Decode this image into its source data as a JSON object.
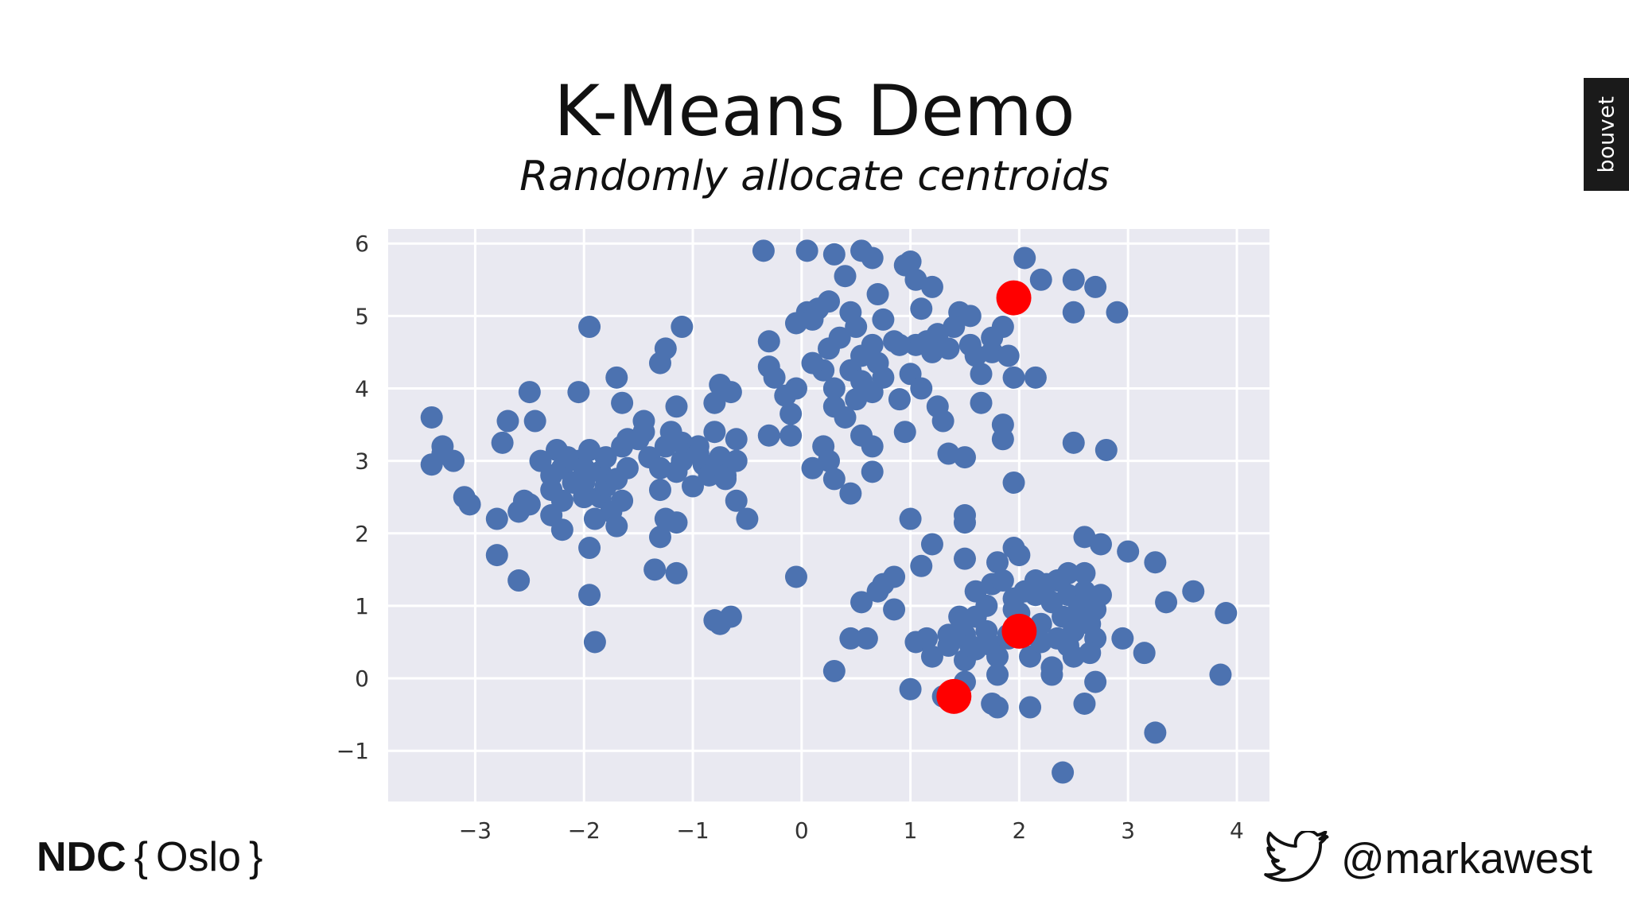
{
  "slide": {
    "title": "K-Means Demo",
    "subtitle": "Randomly allocate centroids"
  },
  "brand_tab": {
    "label": "bouvet",
    "background": "#1a1a1a"
  },
  "footer": {
    "conference": {
      "main": "NDC",
      "open_brace": "{",
      "city": "Oslo",
      "close_brace": "}"
    },
    "twitter": {
      "icon": "twitter-bird-icon",
      "handle": "@markawest"
    }
  },
  "chart_data": {
    "type": "scatter",
    "title": "",
    "xlabel": "",
    "ylabel": "",
    "xlim": [
      -3.8,
      4.3
    ],
    "ylim": [
      -1.7,
      6.2
    ],
    "xticks": [
      -3,
      -2,
      -1,
      0,
      1,
      2,
      3,
      4
    ],
    "xtick_labels": [
      "−3",
      "−2",
      "−1",
      "0",
      "1",
      "2",
      "3",
      "4"
    ],
    "yticks": [
      -1,
      0,
      1,
      2,
      3,
      4,
      5,
      6
    ],
    "ytick_labels": [
      "−1",
      "0",
      "1",
      "2",
      "3",
      "4",
      "5",
      "6"
    ],
    "grid": true,
    "background": "#e9e9f1",
    "series": [
      {
        "role": "points",
        "color": "#4c72b0",
        "points": [
          [
            -3.4,
            3.6
          ],
          [
            -3.3,
            3.2
          ],
          [
            -3.2,
            3.0
          ],
          [
            -3.4,
            2.95
          ],
          [
            -3.3,
            3.1
          ],
          [
            -3.1,
            2.5
          ],
          [
            -3.05,
            2.4
          ],
          [
            -2.8,
            2.2
          ],
          [
            -2.8,
            1.7
          ],
          [
            -2.6,
            1.35
          ],
          [
            -2.75,
            3.25
          ],
          [
            -2.7,
            3.55
          ],
          [
            -2.5,
            3.95
          ],
          [
            -2.45,
            3.55
          ],
          [
            -2.55,
            2.45
          ],
          [
            -2.6,
            2.3
          ],
          [
            -2.5,
            2.4
          ],
          [
            -2.3,
            2.25
          ],
          [
            -2.2,
            2.05
          ],
          [
            -2.3,
            2.6
          ],
          [
            -2.3,
            2.8
          ],
          [
            -2.25,
            3.15
          ],
          [
            -2.2,
            2.9
          ],
          [
            -2.15,
            3.05
          ],
          [
            -2.1,
            2.7
          ],
          [
            -2.05,
            3.0
          ],
          [
            -2.0,
            2.5
          ],
          [
            -1.95,
            3.15
          ],
          [
            -2.0,
            2.7
          ],
          [
            -1.9,
            2.2
          ],
          [
            -1.85,
            2.5
          ],
          [
            -1.8,
            2.65
          ],
          [
            -1.85,
            2.85
          ],
          [
            -1.8,
            3.05
          ],
          [
            -1.75,
            2.3
          ],
          [
            -1.7,
            2.1
          ],
          [
            -1.65,
            2.45
          ],
          [
            -1.7,
            2.75
          ],
          [
            -1.6,
            2.9
          ],
          [
            -1.65,
            3.2
          ],
          [
            -2.05,
            3.95
          ],
          [
            -1.95,
            4.85
          ],
          [
            -1.7,
            4.15
          ],
          [
            -1.65,
            3.8
          ],
          [
            -1.5,
            3.3
          ],
          [
            -1.45,
            3.55
          ],
          [
            -1.4,
            3.05
          ],
          [
            -1.3,
            2.9
          ],
          [
            -1.25,
            3.2
          ],
          [
            -1.3,
            2.6
          ],
          [
            -1.25,
            2.2
          ],
          [
            -1.3,
            1.95
          ],
          [
            -1.35,
            1.5
          ],
          [
            -1.15,
            1.45
          ],
          [
            -1.15,
            2.15
          ],
          [
            -1.1,
            3.0
          ],
          [
            -1.2,
            3.4
          ],
          [
            -1.1,
            3.25
          ],
          [
            -1.15,
            3.75
          ],
          [
            -1.1,
            4.85
          ],
          [
            -1.3,
            4.35
          ],
          [
            -1.25,
            4.55
          ],
          [
            -1.0,
            2.65
          ],
          [
            -0.95,
            3.2
          ],
          [
            -0.9,
            2.95
          ],
          [
            -0.85,
            2.8
          ],
          [
            -0.8,
            3.4
          ],
          [
            -0.75,
            3.05
          ],
          [
            -0.8,
            3.8
          ],
          [
            -0.75,
            4.05
          ],
          [
            -0.65,
            3.95
          ],
          [
            -0.7,
            2.8
          ],
          [
            -0.6,
            3.0
          ],
          [
            -0.6,
            3.3
          ],
          [
            -0.6,
            2.45
          ],
          [
            -0.5,
            2.2
          ],
          [
            -0.8,
            0.8
          ],
          [
            -0.75,
            0.75
          ],
          [
            -0.65,
            0.85
          ],
          [
            -1.95,
            1.15
          ],
          [
            -1.9,
            0.5
          ],
          [
            -1.95,
            1.8
          ],
          [
            -1.6,
            3.3
          ],
          [
            -1.45,
            3.4
          ],
          [
            -1.15,
            2.85
          ],
          [
            -0.95,
            3.1
          ],
          [
            -0.7,
            2.75
          ],
          [
            -2.0,
            2.9
          ],
          [
            -2.2,
            2.45
          ],
          [
            -2.4,
            3.0
          ],
          [
            -0.35,
            5.9
          ],
          [
            -0.3,
            4.65
          ],
          [
            -0.3,
            4.3
          ],
          [
            -0.25,
            4.15
          ],
          [
            -0.3,
            3.35
          ],
          [
            -0.1,
            3.35
          ],
          [
            -0.1,
            3.65
          ],
          [
            -0.15,
            3.9
          ],
          [
            -0.05,
            4.0
          ],
          [
            -0.05,
            4.9
          ],
          [
            0.05,
            5.05
          ],
          [
            0.15,
            5.1
          ],
          [
            0.25,
            5.2
          ],
          [
            0.1,
            4.95
          ],
          [
            0.05,
            5.9
          ],
          [
            0.3,
            5.85
          ],
          [
            0.4,
            5.55
          ],
          [
            0.55,
            5.9
          ],
          [
            0.65,
            5.8
          ],
          [
            0.7,
            5.3
          ],
          [
            0.75,
            4.95
          ],
          [
            0.5,
            4.85
          ],
          [
            0.35,
            4.7
          ],
          [
            0.25,
            4.55
          ],
          [
            0.2,
            4.25
          ],
          [
            0.1,
            4.35
          ],
          [
            0.3,
            4.0
          ],
          [
            0.45,
            4.25
          ],
          [
            0.55,
            4.1
          ],
          [
            0.65,
            3.95
          ],
          [
            0.5,
            3.85
          ],
          [
            0.7,
            4.35
          ],
          [
            0.65,
            4.6
          ],
          [
            0.75,
            4.15
          ],
          [
            0.3,
            3.75
          ],
          [
            0.4,
            3.6
          ],
          [
            0.55,
            3.35
          ],
          [
            0.65,
            3.2
          ],
          [
            0.95,
            3.4
          ],
          [
            0.9,
            3.85
          ],
          [
            0.95,
            5.7
          ],
          [
            1.0,
            5.75
          ],
          [
            1.05,
            5.5
          ],
          [
            1.2,
            5.4
          ],
          [
            1.1,
            5.1
          ],
          [
            1.25,
            4.75
          ],
          [
            1.05,
            4.6
          ],
          [
            1.15,
            4.65
          ],
          [
            0.9,
            4.6
          ],
          [
            1.0,
            4.2
          ],
          [
            1.1,
            4.0
          ],
          [
            1.25,
            3.75
          ],
          [
            1.3,
            3.55
          ],
          [
            1.35,
            4.55
          ],
          [
            1.45,
            5.05
          ],
          [
            1.55,
            5.0
          ],
          [
            1.55,
            4.6
          ],
          [
            1.6,
            4.45
          ],
          [
            1.65,
            4.2
          ],
          [
            1.75,
            4.5
          ],
          [
            1.85,
            4.85
          ],
          [
            1.9,
            4.45
          ],
          [
            1.95,
            4.15
          ],
          [
            2.15,
            4.15
          ],
          [
            1.65,
            3.8
          ],
          [
            1.85,
            3.5
          ],
          [
            1.85,
            3.3
          ],
          [
            1.35,
            3.1
          ],
          [
            1.5,
            3.05
          ],
          [
            1.95,
            2.7
          ],
          [
            0.1,
            2.9
          ],
          [
            0.2,
            3.2
          ],
          [
            0.25,
            3.0
          ],
          [
            0.3,
            2.75
          ],
          [
            0.45,
            2.55
          ],
          [
            0.65,
            2.85
          ],
          [
            2.05,
            5.8
          ],
          [
            2.2,
            5.5
          ],
          [
            2.5,
            5.5
          ],
          [
            2.7,
            5.4
          ],
          [
            2.5,
            5.05
          ],
          [
            2.9,
            5.05
          ],
          [
            2.5,
            3.25
          ],
          [
            2.8,
            3.15
          ],
          [
            1.2,
            4.5
          ],
          [
            1.4,
            4.85
          ],
          [
            0.85,
            4.65
          ],
          [
            1.75,
            4.7
          ],
          [
            0.45,
            5.05
          ],
          [
            0.55,
            4.45
          ],
          [
            1.0,
            2.2
          ],
          [
            1.5,
            2.15
          ],
          [
            1.5,
            2.25
          ],
          [
            1.2,
            1.85
          ],
          [
            1.1,
            1.55
          ],
          [
            1.5,
            1.65
          ],
          [
            1.8,
            1.6
          ],
          [
            1.95,
            1.8
          ],
          [
            2.0,
            1.7
          ],
          [
            2.6,
            1.95
          ],
          [
            2.75,
            1.85
          ],
          [
            3.0,
            1.75
          ],
          [
            3.25,
            1.6
          ],
          [
            3.6,
            1.2
          ],
          [
            3.35,
            1.05
          ],
          [
            3.9,
            0.9
          ],
          [
            3.85,
            0.05
          ],
          [
            3.15,
            0.35
          ],
          [
            2.95,
            0.55
          ],
          [
            3.25,
            -0.75
          ],
          [
            2.4,
            -1.3
          ],
          [
            2.7,
            -0.05
          ],
          [
            2.6,
            -0.35
          ],
          [
            2.1,
            -0.4
          ],
          [
            1.8,
            -0.4
          ],
          [
            1.75,
            -0.35
          ],
          [
            1.3,
            -0.25
          ],
          [
            1.0,
            -0.15
          ],
          [
            1.5,
            -0.05
          ],
          [
            1.8,
            0.05
          ],
          [
            2.3,
            0.05
          ],
          [
            2.3,
            0.15
          ],
          [
            2.1,
            0.3
          ],
          [
            1.8,
            0.3
          ],
          [
            1.5,
            0.25
          ],
          [
            1.2,
            0.3
          ],
          [
            1.05,
            0.5
          ],
          [
            1.15,
            0.55
          ],
          [
            1.35,
            0.6
          ],
          [
            1.5,
            0.6
          ],
          [
            0.6,
            0.55
          ],
          [
            0.3,
            0.1
          ],
          [
            0.55,
            1.05
          ],
          [
            0.7,
            1.2
          ],
          [
            0.75,
            1.3
          ],
          [
            0.85,
            1.4
          ],
          [
            0.85,
            0.95
          ],
          [
            1.6,
            0.85
          ],
          [
            1.7,
            1.0
          ],
          [
            1.6,
            1.2
          ],
          [
            1.75,
            1.3
          ],
          [
            1.85,
            1.35
          ],
          [
            1.95,
            1.1
          ],
          [
            2.05,
            1.2
          ],
          [
            2.15,
            1.35
          ],
          [
            2.25,
            1.3
          ],
          [
            2.35,
            1.35
          ],
          [
            2.45,
            1.45
          ],
          [
            2.6,
            1.45
          ],
          [
            2.45,
            1.15
          ],
          [
            2.6,
            1.2
          ],
          [
            2.75,
            1.15
          ],
          [
            2.55,
            1.0
          ],
          [
            2.7,
            0.95
          ],
          [
            2.4,
            0.85
          ],
          [
            2.55,
            0.85
          ],
          [
            2.65,
            0.75
          ],
          [
            2.5,
            0.65
          ],
          [
            2.35,
            0.55
          ],
          [
            2.7,
            0.55
          ],
          [
            2.45,
            0.45
          ],
          [
            2.2,
            0.5
          ],
          [
            2.05,
            0.65
          ],
          [
            2.2,
            0.75
          ],
          [
            2.0,
            0.9
          ],
          [
            1.9,
            0.6
          ],
          [
            1.7,
            0.65
          ],
          [
            1.75,
            0.45
          ],
          [
            1.6,
            0.4
          ],
          [
            1.45,
            0.85
          ],
          [
            -0.05,
            1.4
          ],
          [
            0.45,
            0.55
          ],
          [
            1.35,
            0.45
          ],
          [
            1.95,
            0.95
          ],
          [
            2.3,
            1.05
          ],
          [
            2.15,
            1.15
          ],
          [
            2.5,
            0.3
          ],
          [
            2.65,
            0.35
          ],
          [
            1.9,
            0.55
          ],
          [
            1.55,
            0.45
          ]
        ]
      },
      {
        "role": "centroids",
        "color": "#ff0000",
        "points": [
          [
            1.95,
            5.25
          ],
          [
            2.0,
            0.65
          ],
          [
            1.4,
            -0.25
          ]
        ]
      }
    ]
  }
}
